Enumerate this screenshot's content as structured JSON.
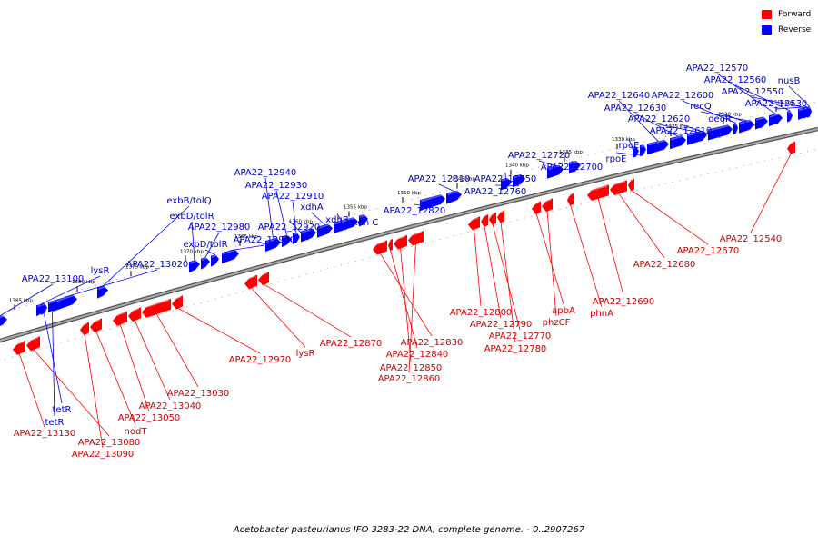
{
  "legend": {
    "forward_label": "Forward",
    "reverse_label": "Reverse",
    "forward_color": "#ff0000",
    "reverse_color": "#0000ff"
  },
  "caption": "Acetobacter pasteurianus IFO 3283-22 DNA, complete genome. - 0..2907267",
  "ruler_ticks": [
    "1385 kbp",
    "1380 kbp",
    "1375 kbp",
    "1370 kbp",
    "1365 kbp",
    "1360 kbp",
    "1355 kbp",
    "1350 kbp",
    "1345 kbp",
    "1340 kbp",
    "1335 kbp",
    "1330 kbp",
    "1325 kbp",
    "1320 kbp",
    "1315 kbp"
  ],
  "reverse_genes": [
    "APA22_13100",
    "lysR",
    "APA22_13020",
    "exbB/tolQ",
    "exbD/tolR",
    "APA22_12980",
    "exbD/tolR",
    "APA22_12950",
    "APA22_12940",
    "APA22_12930",
    "APA22_12910",
    "APA22_12920",
    "xdhA",
    "xdhB",
    "xdh C",
    "APA22_12820",
    "APA22_12810",
    "APA22_12750",
    "APA22_12760",
    "APA22_12720",
    "APA22_12700",
    "rpoE",
    "rpoE",
    "APA22_12640",
    "APA22_12630",
    "APA22_12620",
    "APA22_12610",
    "APA22_12600",
    "recQ",
    "deoR",
    "APA22_12570",
    "APA22_12560",
    "APA22_12550",
    "APA22_12530",
    "nusB",
    "tetR",
    "tetR"
  ],
  "forward_genes": [
    "APA22_13130",
    "APA22_13080",
    "APA22_13090",
    "nodT",
    "APA22_13050",
    "APA22_13040",
    "APA22_13030",
    "APA22_12970",
    "lysR",
    "APA22_12870",
    "APA22_12830",
    "APA22_12840",
    "APA22_12850",
    "APA22_12860",
    "APA22_12800",
    "APA22_12790",
    "APA22_12770",
    "APA22_12780",
    "apbA",
    "phzCF",
    "phnA",
    "APA22_12690",
    "APA22_12680",
    "APA22_12670",
    "APA22_12540"
  ]
}
